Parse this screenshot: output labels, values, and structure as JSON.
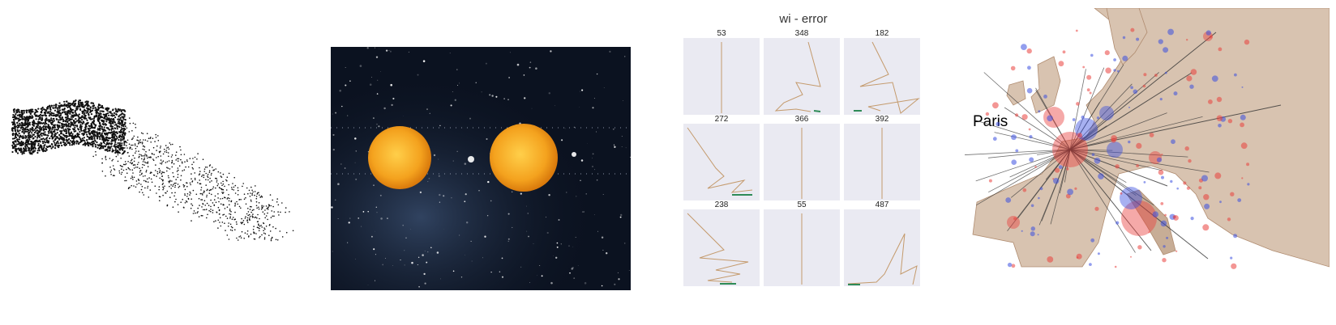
{
  "panel3": {
    "title": "wi - error",
    "cells": [
      {
        "label": "53"
      },
      {
        "label": "348"
      },
      {
        "label": "182"
      },
      {
        "label": "272"
      },
      {
        "label": "366"
      },
      {
        "label": "392"
      },
      {
        "label": "238"
      },
      {
        "label": "55"
      },
      {
        "label": "487"
      }
    ]
  },
  "panel4": {
    "city_label": "Paris"
  },
  "colors": {
    "space_bg": "#0b1220",
    "sun": "#f4a21e",
    "cell_bg": "#eaeaf2",
    "line": "#c49a6c",
    "land": "#d8c3b0",
    "red_bubble": "#e9403d",
    "blue_bubble": "#3b4fe0"
  }
}
